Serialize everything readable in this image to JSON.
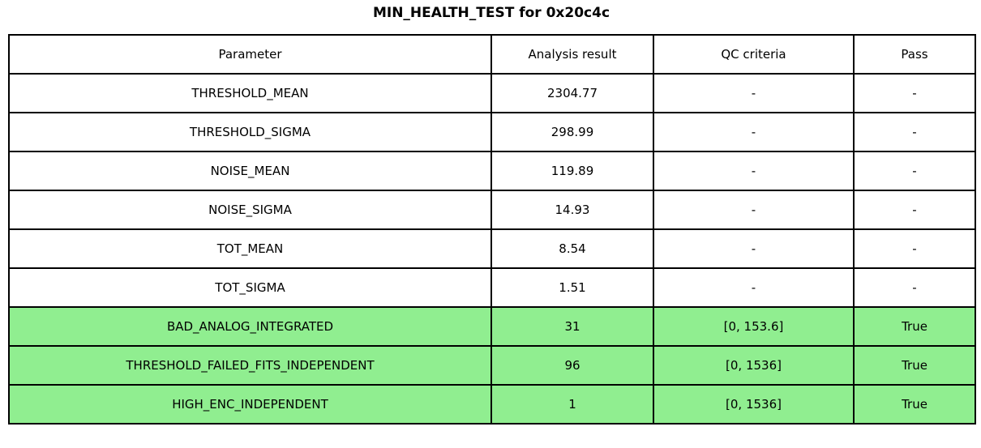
{
  "title": "MIN_HEALTH_TEST for 0x20c4c",
  "colors": {
    "pass_row_bg": "#90EE90",
    "border": "#000000"
  },
  "table": {
    "headers": [
      "Parameter",
      "Analysis result",
      "QC criteria",
      "Pass"
    ],
    "rows": [
      {
        "parameter": "THRESHOLD_MEAN",
        "result": "2304.77",
        "qc": "-",
        "pass": "-",
        "highlight": false
      },
      {
        "parameter": "THRESHOLD_SIGMA",
        "result": "298.99",
        "qc": "-",
        "pass": "-",
        "highlight": false
      },
      {
        "parameter": "NOISE_MEAN",
        "result": "119.89",
        "qc": "-",
        "pass": "-",
        "highlight": false
      },
      {
        "parameter": "NOISE_SIGMA",
        "result": "14.93",
        "qc": "-",
        "pass": "-",
        "highlight": false
      },
      {
        "parameter": "TOT_MEAN",
        "result": "8.54",
        "qc": "-",
        "pass": "-",
        "highlight": false
      },
      {
        "parameter": "TOT_SIGMA",
        "result": "1.51",
        "qc": "-",
        "pass": "-",
        "highlight": false
      },
      {
        "parameter": "BAD_ANALOG_INTEGRATED",
        "result": "31",
        "qc": "[0, 153.6]",
        "pass": "True",
        "highlight": true
      },
      {
        "parameter": "THRESHOLD_FAILED_FITS_INDEPENDENT",
        "result": "96",
        "qc": "[0, 1536]",
        "pass": "True",
        "highlight": true
      },
      {
        "parameter": "HIGH_ENC_INDEPENDENT",
        "result": "1",
        "qc": "[0, 1536]",
        "pass": "True",
        "highlight": true
      }
    ]
  }
}
